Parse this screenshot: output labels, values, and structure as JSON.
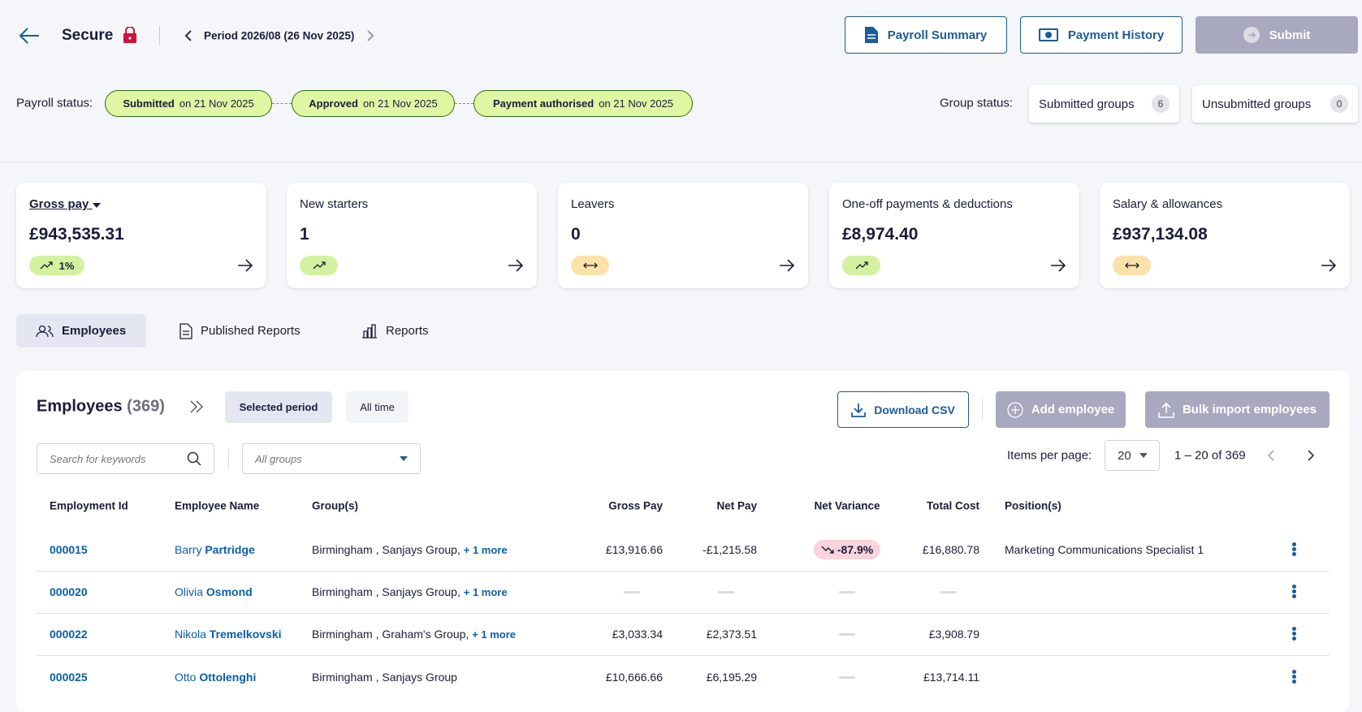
{
  "header": {
    "title": "Secure",
    "period": "Period 2026/08",
    "period_date": "(26 Nov 2025)",
    "buttons": [
      "Payroll Summary",
      "Payment History",
      "Submit"
    ]
  },
  "status": {
    "label": "Payroll status:",
    "steps": [
      {
        "label": "Submitted",
        "date": "on 21 Nov 2025"
      },
      {
        "label": "Approved",
        "date": "on 21 Nov 2025"
      },
      {
        "label": "Payment authorised",
        "date": "on 21 Nov 2025"
      }
    ],
    "group_label": "Group status:",
    "groups": [
      {
        "label": "Submitted groups",
        "count": 6
      },
      {
        "label": "Unsubmitted groups",
        "count": 0
      }
    ]
  },
  "cards": [
    {
      "title": "Gross pay",
      "value": "£943,535.31",
      "change": "1%"
    },
    {
      "title": "New starters",
      "value": "1"
    },
    {
      "title": "Leavers",
      "value": "0"
    },
    {
      "title": "One-off payments & deductions",
      "value": "£8,974.40"
    },
    {
      "title": "Salary & allowances",
      "value": "£937,134.08"
    }
  ],
  "tabs": [
    "Employees",
    "Published Reports",
    "Reports"
  ],
  "employees": {
    "title": "Employees",
    "count": "(369)",
    "filters": [
      "Selected period",
      "All time"
    ],
    "actions": [
      "Download CSV",
      "Add employee",
      "Bulk import employees"
    ],
    "search_placeholder": "Search for keywords",
    "groups_placeholder": "All groups",
    "items_per_page_label": "Items per page:",
    "items_per_page": 20,
    "range": "1 – 20 of 369",
    "table": {
      "columns": [
        "Employment Id",
        "Employee Name",
        "Group(s)",
        "Gross Pay",
        "Net Pay",
        "Net Variance",
        "Total Cost",
        "Position(s)"
      ],
      "rows": [
        {
          "id": "000015",
          "first_name": "Barry",
          "last_name": "Partridge",
          "groups": "Birmingham , Sanjays Group,",
          "more": "+ 1 more",
          "gross_pay": "£13,916.66",
          "net_pay": "-£1,215.58",
          "net_variance": "-87.9%",
          "total_cost": "£16,880.78",
          "position": "Marketing Communications Specialist 1"
        },
        {
          "id": "000020",
          "first_name": "Olivia",
          "last_name": "Osmond",
          "groups": "Birmingham , Sanjays Group,",
          "more": "+ 1 more",
          "gross_pay": null,
          "net_pay": null,
          "net_variance": null,
          "total_cost": null,
          "position": null
        },
        {
          "id": "000022",
          "first_name": "Nikola",
          "last_name": "Tremelkovski",
          "groups": "Birmingham , Graham's Group,",
          "more": "+ 1 more",
          "gross_pay": "£3,033.34",
          "net_pay": "£2,373.51",
          "net_variance": null,
          "total_cost": "£3,908.79",
          "position": null
        },
        {
          "id": "000025",
          "first_name": "Otto",
          "last_name": "Ottolenghi",
          "groups": "Birmingham , Sanjays Group",
          "more": null,
          "gross_pay": "£10,666.66",
          "net_pay": "£6,195.29",
          "net_variance": null,
          "total_cost": "£13,714.11",
          "position": null
        }
      ]
    }
  }
}
